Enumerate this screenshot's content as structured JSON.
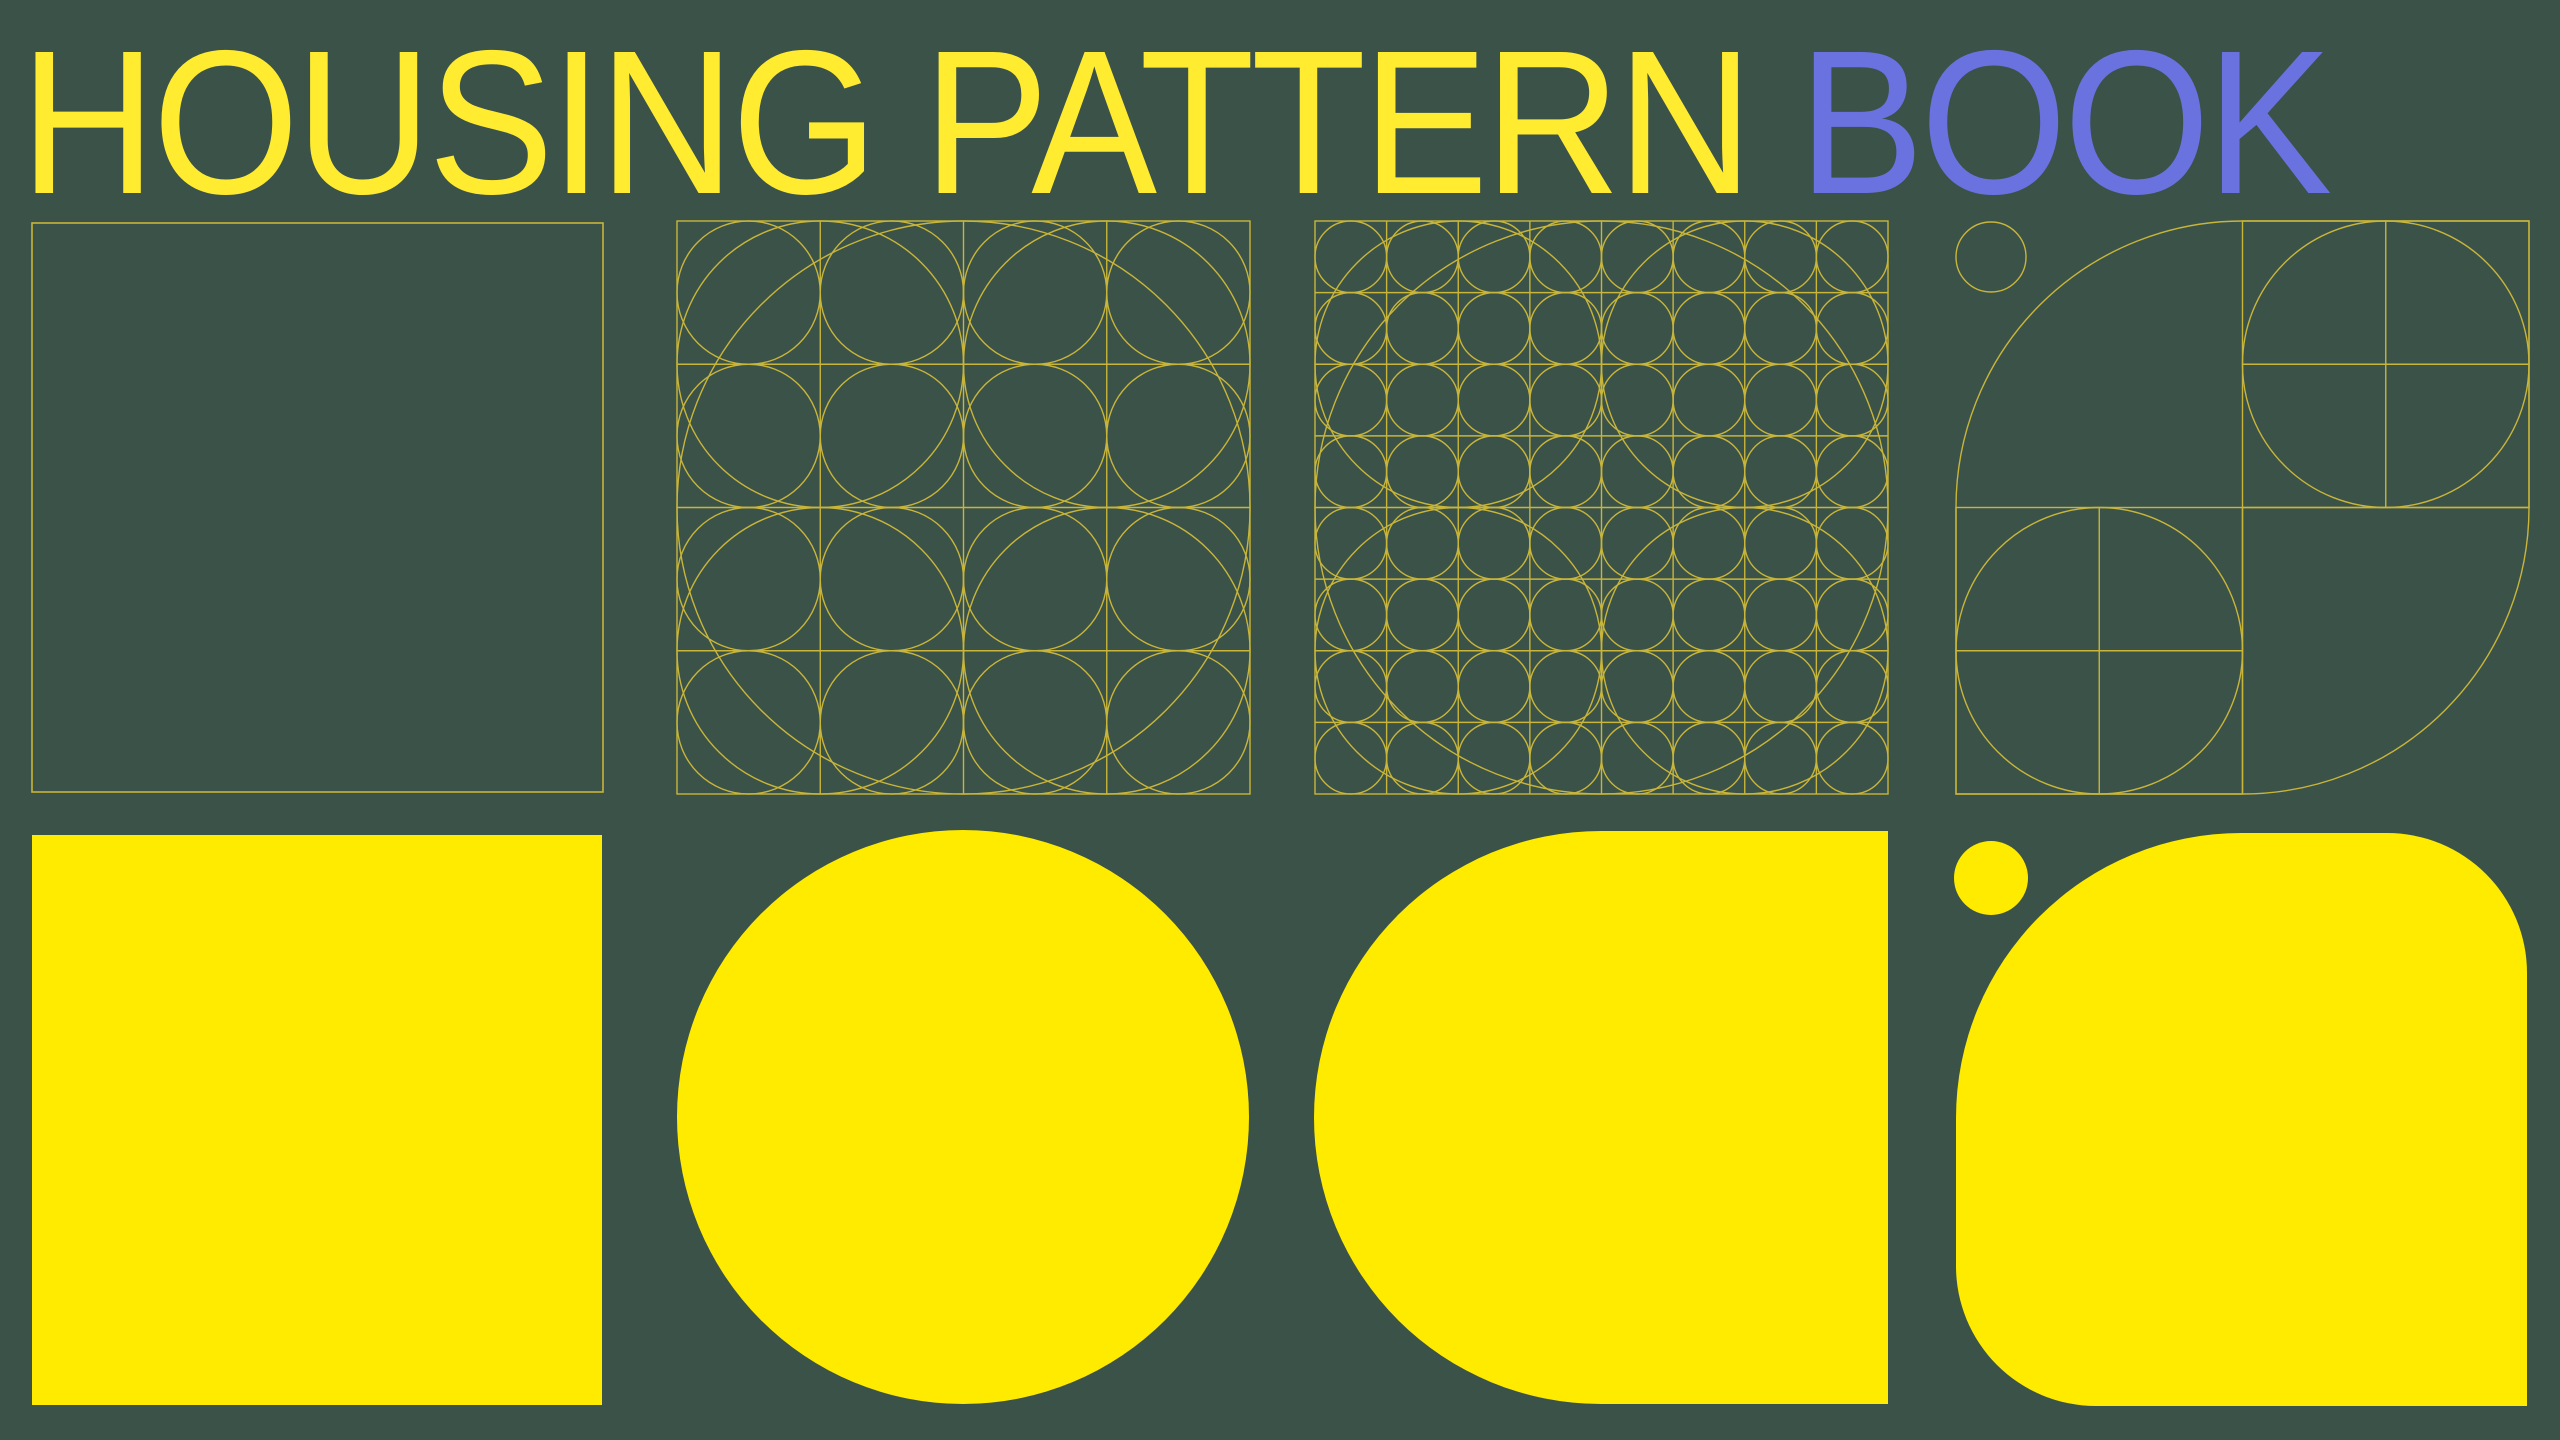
{
  "title": {
    "part1": "HOUSING PATTERN",
    "part2": "BOOK"
  },
  "colors": {
    "background": "#3b5249",
    "primary": "#ffeb00",
    "title_primary": "#ffeb30",
    "accent": "#6a72e0",
    "line": "#c8b53a"
  }
}
